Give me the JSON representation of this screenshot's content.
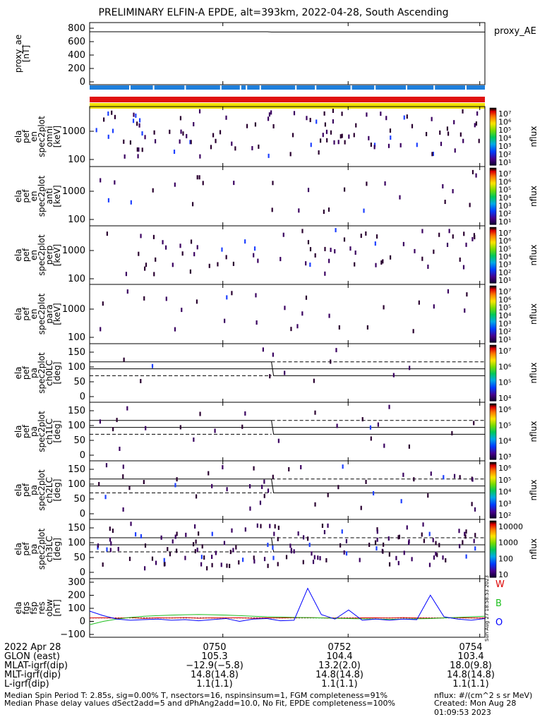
{
  "title": "PRELIMINARY ELFIN-A EPDE, alt=393km, 2022-04-28, South Ascending",
  "bars": {
    "colors": [
      "#1e7fdc",
      "#e01010",
      "#f0e000"
    ]
  },
  "colors": {
    "line_black": "#000000",
    "green": "#20c020",
    "blue": "#0000ff",
    "red": "#dd0000"
  },
  "panels": [
    {
      "id": "proxy_ae",
      "ylabel": [
        "proxy_ae",
        "[nT]"
      ],
      "right_label": "proxy_AE",
      "yticks": [
        "800",
        "600",
        "400",
        "200",
        "0"
      ]
    },
    {
      "id": "en-omni",
      "ylabel": [
        "ela",
        "pef",
        "en",
        "spec2plot",
        "omni",
        "[keV]"
      ],
      "yticks": [
        "1000",
        "100"
      ],
      "cb_label": "nflux",
      "cb_ticks": [
        "10⁷",
        "10⁶",
        "10⁵",
        "10⁴",
        "10³",
        "10²",
        "10¹"
      ]
    },
    {
      "id": "en-anti",
      "ylabel": [
        "ela",
        "pef",
        "en",
        "spec2plot",
        "anti",
        "[keV]"
      ],
      "yticks": [
        "1000",
        "100"
      ],
      "cb_label": "nflux",
      "cb_ticks": [
        "10⁷",
        "10⁶",
        "10⁵",
        "10⁴",
        "10³",
        "10²",
        "10¹"
      ]
    },
    {
      "id": "en-perp",
      "ylabel": [
        "ela",
        "pef",
        "en",
        "spec2plot",
        "perp",
        "[keV]"
      ],
      "yticks": [
        "1000",
        "100"
      ],
      "cb_label": "nflux",
      "cb_ticks": [
        "10⁷",
        "10⁶",
        "10⁵",
        "10⁴",
        "10³",
        "10²",
        "10¹"
      ]
    },
    {
      "id": "en-para",
      "ylabel": [
        "ela",
        "pef",
        "en",
        "spec2plot",
        "para",
        "[keV]"
      ],
      "yticks": [
        "1000",
        "100"
      ],
      "cb_label": "nflux",
      "cb_ticks": [
        "10⁷",
        "10⁶",
        "10⁵",
        "10⁴",
        "10³",
        "10²",
        "10¹"
      ]
    },
    {
      "id": "pa-ch0LC",
      "ylabel": [
        "ela",
        "pef",
        "pa",
        "spec2plot",
        "ch0LC",
        "[deg]"
      ],
      "yticks": [
        "150",
        "100",
        "50",
        "0"
      ],
      "cb_label": "nflux",
      "cb_ticks": [
        "10⁷",
        "10⁶",
        "10⁵",
        "10⁴"
      ]
    },
    {
      "id": "pa-ch1LC",
      "ylabel": [
        "ela",
        "pef",
        "pa",
        "spec2plot",
        "ch1LC",
        "[deg]"
      ],
      "yticks": [
        "150",
        "100",
        "50",
        "0"
      ],
      "cb_label": "nflux",
      "cb_ticks": [
        "10⁶",
        "10⁵",
        "10⁴",
        "10³"
      ]
    },
    {
      "id": "pa-ch2LC",
      "ylabel": [
        "ela",
        "pef",
        "pa",
        "spec2plot",
        "ch2LC",
        "[deg]"
      ],
      "yticks": [
        "150",
        "100",
        "50",
        "0"
      ],
      "cb_label": "nflux",
      "cb_ticks": [
        "10⁶",
        "10⁵",
        "10⁴",
        "10³",
        "10²"
      ]
    },
    {
      "id": "pa-ch3LC",
      "ylabel": [
        "ela",
        "pef",
        "pa",
        "spec2plot",
        "ch3LC",
        "[deg]"
      ],
      "yticks": [
        "150",
        "100",
        "50",
        "0"
      ],
      "cb_label": "nflux",
      "cb_ticks": [
        "10000",
        "1000",
        "100",
        "10"
      ]
    },
    {
      "id": "fgs",
      "ylabel": [
        "ela",
        "fgs",
        "fsp",
        "res",
        "obw",
        "[nT]"
      ],
      "yticks": [
        "300",
        "200",
        "100",
        "0",
        "−100"
      ],
      "wbo": [
        "W",
        "B",
        "O"
      ],
      "side_text": "Sun Aug 27 18:58:53 2023"
    }
  ],
  "chart_data": {
    "type": "line",
    "title": "PRELIMINARY ELFIN-A EPDE, alt=393km, 2022-04-28, South Ascending",
    "x_ticks": [
      "0750",
      "0752",
      "0754"
    ],
    "proxy_ae": {
      "ylim": [
        -100,
        850
      ],
      "x": [
        0,
        0.45,
        0.46,
        1
      ],
      "y": [
        710,
        710,
        705,
        705
      ]
    },
    "fgs_res": {
      "ylim": [
        -120,
        320
      ],
      "series": [
        {
          "name": "W",
          "color": "#dd0000",
          "y": [
            0,
            2,
            -2,
            3,
            -4,
            2,
            -1,
            3,
            -2,
            1,
            0,
            2,
            -3,
            1,
            0,
            2,
            3,
            1,
            0,
            -2,
            1,
            2,
            -1,
            3,
            0,
            -2,
            1,
            2,
            0,
            -1
          ]
        },
        {
          "name": "B",
          "color": "#20c020",
          "y": [
            -60,
            -30,
            -10,
            5,
            15,
            20,
            25,
            28,
            30,
            28,
            25,
            20,
            15,
            10,
            8,
            5,
            3,
            0,
            -3,
            -5,
            -8,
            -10,
            -12,
            -10,
            -8,
            -5,
            0,
            5,
            10,
            15
          ]
        },
        {
          "name": "O",
          "color": "#0000ff",
          "y": [
            60,
            20,
            -10,
            -20,
            -15,
            -10,
            -20,
            -15,
            -25,
            -15,
            -5,
            -30,
            -10,
            -5,
            -25,
            -20,
            260,
            30,
            -10,
            70,
            -20,
            -10,
            -20,
            -10,
            -15,
            200,
            10,
            -10,
            -20,
            -5
          ]
        }
      ]
    }
  },
  "footer": {
    "rows": [
      {
        "label": "2022 Apr 28",
        "vals": [
          "0750",
          "0752",
          "0754"
        ]
      },
      {
        "label": "GLON (east)",
        "vals": [
          "105.3",
          "104.4",
          "103.4"
        ]
      },
      {
        "label": "MLAT-igrf(dip)",
        "vals": [
          "−12.9(−5.8)",
          "13.2(2.0)",
          "18.0(9.8)"
        ]
      },
      {
        "label": "MLT-igrf(dip)",
        "vals": [
          "14.8(14.8)",
          "14.8(14.8)",
          "14.8(14.8)"
        ]
      },
      {
        "label": "L-igrf(dip)",
        "vals": [
          "1.1(1.1)",
          "1.1(1.1)",
          "1.1(1.1)"
        ]
      }
    ],
    "note1": "Median Spin Period T: 2.85s, sig=0.00% T, nsectors=16, nspinsinsum=1, FGM completeness=91%",
    "note2": "Median Phase delay values dSect2add=5 and dPhAng2add=10.0, No Fit, EPDE completeness=100%",
    "units": "nflux: #/(cm^2 s sr MeV)",
    "created": "Created: Mon Aug 28 01:09:53 2023"
  }
}
